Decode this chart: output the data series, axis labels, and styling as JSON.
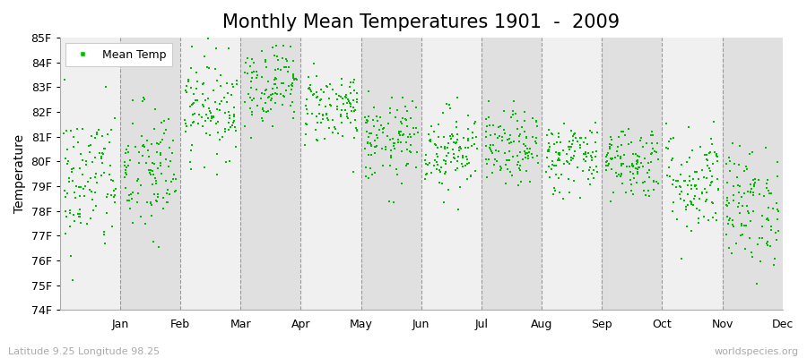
{
  "title": "Monthly Mean Temperatures 1901  -  2009",
  "ylabel": "Temperature",
  "footer_left": "Latitude 9.25 Longitude 98.25",
  "footer_right": "worldspecies.org",
  "legend_label": "Mean Temp",
  "ylim": [
    74,
    85
  ],
  "ytick_labels": [
    "74F",
    "75F",
    "76F",
    "77F",
    "78F",
    "79F",
    "80F",
    "81F",
    "82F",
    "83F",
    "84F",
    "85F"
  ],
  "ytick_values": [
    74,
    75,
    76,
    77,
    78,
    79,
    80,
    81,
    82,
    83,
    84,
    85
  ],
  "months": [
    "Jan",
    "Feb",
    "Mar",
    "Apr",
    "May",
    "Jun",
    "Jul",
    "Aug",
    "Sep",
    "Oct",
    "Nov",
    "Dec"
  ],
  "n_years": 109,
  "marker_color": "#00BB00",
  "marker_size": 4,
  "bg_color": "#FFFFFF",
  "plot_bg_light": "#F0F0F0",
  "plot_bg_dark": "#E0E0E0",
  "month_means": [
    79.2,
    79.5,
    82.2,
    83.2,
    82.2,
    80.8,
    80.5,
    80.5,
    80.2,
    80.0,
    79.2,
    78.2
  ],
  "month_stds": [
    1.5,
    1.4,
    1.0,
    0.85,
    0.75,
    0.85,
    0.85,
    0.75,
    0.75,
    0.75,
    1.1,
    1.2
  ],
  "random_seed": 42,
  "dashed_line_color": "#999999",
  "title_fontsize": 15,
  "axis_fontsize": 10,
  "tick_fontsize": 9,
  "footer_fontsize": 8
}
